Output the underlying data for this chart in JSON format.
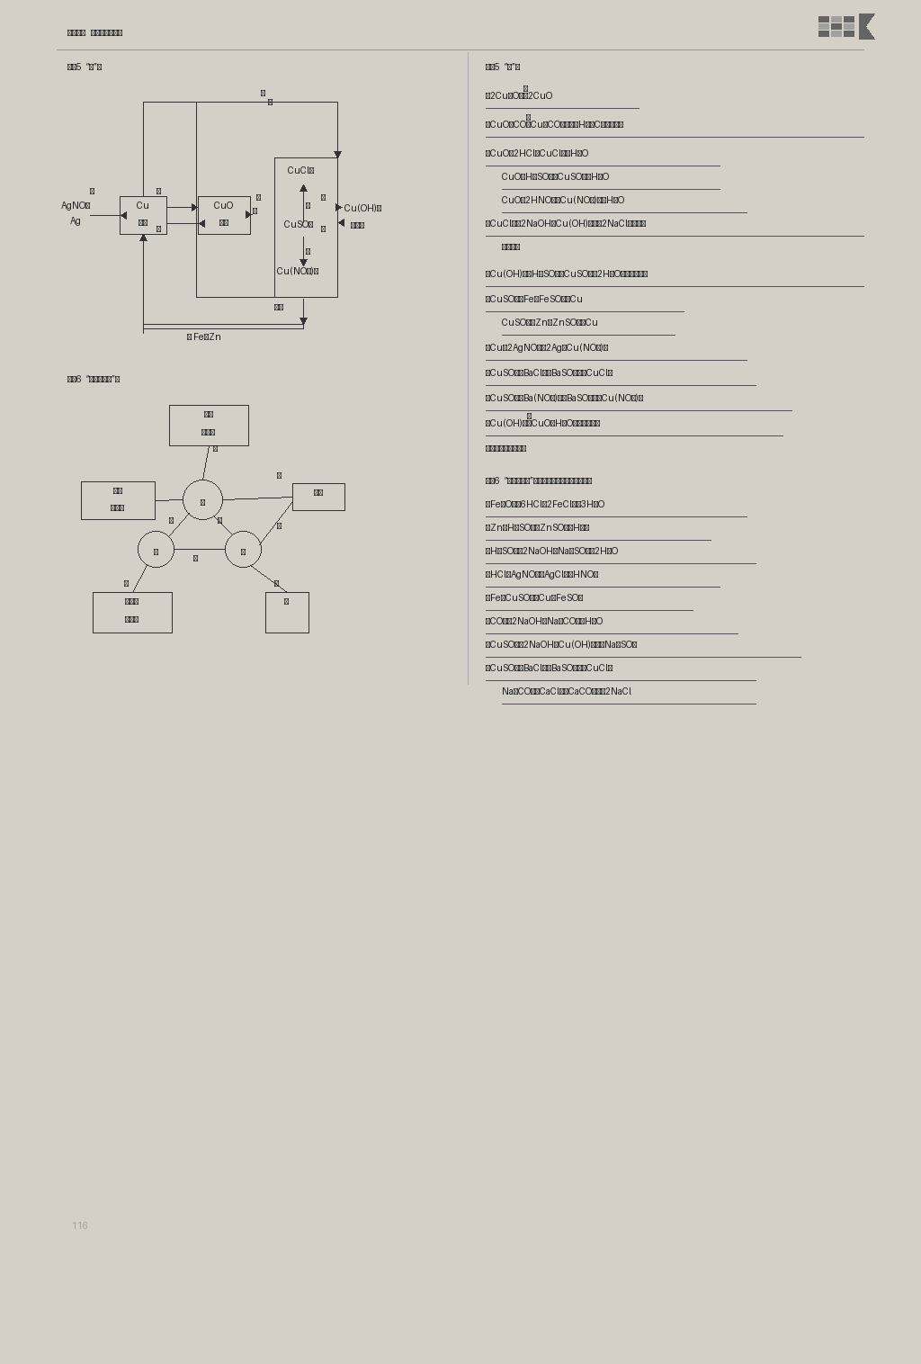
{
  "page_bg": "#d4d0c8",
  "text_color": "#1a1a1a",
  "box_bg": "#e8e4dc",
  "box_edge": "#222222",
  "line_color": "#333333",
  "ul_color": "#555555",
  "header": "第一部分   身边的化学物质",
  "title_l1": "归纳5  “铜”线",
  "title_r1": "归纳5  “铜”线",
  "title_l2": "归纳6  “酸、碱、盐”线",
  "title_r2": "归纳6  “酸、碱、盐”线（合理即可，答案不唯一）",
  "page_num": "116"
}
